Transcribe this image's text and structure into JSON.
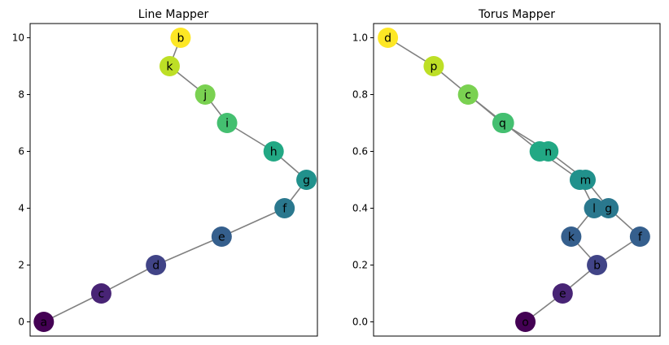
{
  "chart_data": [
    {
      "type": "network",
      "title": "Line Mapper",
      "xlabel": "",
      "ylabel": "",
      "ylim": [
        -0.5,
        10.5
      ],
      "xlim": [
        -0.5,
        10.0
      ],
      "yticks": [
        0,
        2,
        4,
        6,
        8,
        10
      ],
      "ytick_labels": [
        "0",
        "2",
        "4",
        "6",
        "8",
        "10"
      ],
      "grid": false,
      "nodes": [
        {
          "label": "a",
          "x": 0.0,
          "y": 0,
          "color": "#440154"
        },
        {
          "label": "c",
          "x": 2.1,
          "y": 1,
          "color": "#482475"
        },
        {
          "label": "d",
          "x": 4.1,
          "y": 2,
          "color": "#414487"
        },
        {
          "label": "e",
          "x": 6.5,
          "y": 3,
          "color": "#355f8d"
        },
        {
          "label": "f",
          "x": 8.8,
          "y": 4,
          "color": "#2a788e"
        },
        {
          "label": "g",
          "x": 9.6,
          "y": 5,
          "color": "#21918c"
        },
        {
          "label": "h",
          "x": 8.4,
          "y": 6,
          "color": "#22a884"
        },
        {
          "label": "i",
          "x": 6.7,
          "y": 7,
          "color": "#44bf70"
        },
        {
          "label": "j",
          "x": 5.9,
          "y": 8,
          "color": "#7ad151"
        },
        {
          "label": "k",
          "x": 4.6,
          "y": 9,
          "color": "#bddf26"
        },
        {
          "label": "b",
          "x": 5.0,
          "y": 10,
          "color": "#fde725"
        }
      ],
      "edges": [
        [
          "a",
          "c"
        ],
        [
          "c",
          "d"
        ],
        [
          "d",
          "e"
        ],
        [
          "e",
          "f"
        ],
        [
          "f",
          "g"
        ],
        [
          "g",
          "h"
        ],
        [
          "h",
          "i"
        ],
        [
          "i",
          "j"
        ],
        [
          "j",
          "k"
        ],
        [
          "k",
          "b"
        ]
      ]
    },
    {
      "type": "network",
      "title": "Torus Mapper",
      "xlabel": "",
      "ylabel": "",
      "ylim": [
        -0.05,
        1.05
      ],
      "xlim": [
        -0.05,
        0.95
      ],
      "yticks": [
        0.0,
        0.2,
        0.4,
        0.6,
        0.8,
        1.0
      ],
      "ytick_labels": [
        "0.0",
        "0.2",
        "0.4",
        "0.6",
        "0.8",
        "1.0"
      ],
      "grid": false,
      "nodes": [
        {
          "label": "o",
          "x": 0.48,
          "y": 0.0,
          "color": "#440154"
        },
        {
          "label": "e",
          "x": 0.61,
          "y": 0.1,
          "color": "#482475"
        },
        {
          "label": "b",
          "x": 0.73,
          "y": 0.2,
          "color": "#414487"
        },
        {
          "label": "k",
          "x": 0.64,
          "y": 0.3,
          "color": "#355f8d"
        },
        {
          "label": "f",
          "x": 0.88,
          "y": 0.3,
          "color": "#355f8d"
        },
        {
          "label": "l",
          "x": 0.72,
          "y": 0.4,
          "color": "#2a788e"
        },
        {
          "label": "g",
          "x": 0.77,
          "y": 0.4,
          "color": "#2a788e"
        },
        {
          "label": "h",
          "x": 0.67,
          "y": 0.5,
          "color": "#21918c"
        },
        {
          "label": "m",
          "x": 0.69,
          "y": 0.5,
          "color": "#21918c"
        },
        {
          "label": "i",
          "x": 0.53,
          "y": 0.6,
          "color": "#22a884"
        },
        {
          "label": "n",
          "x": 0.56,
          "y": 0.6,
          "color": "#22a884"
        },
        {
          "label": "j",
          "x": 0.405,
          "y": 0.7,
          "color": "#44bf70"
        },
        {
          "label": "q",
          "x": 0.4,
          "y": 0.7,
          "color": "#44bf70"
        },
        {
          "label": "c",
          "x": 0.28,
          "y": 0.8,
          "color": "#7ad151"
        },
        {
          "label": "p",
          "x": 0.16,
          "y": 0.9,
          "color": "#bddf26"
        },
        {
          "label": "d",
          "x": 0.0,
          "y": 1.0,
          "color": "#fde725"
        }
      ],
      "edges": [
        [
          "o",
          "e"
        ],
        [
          "e",
          "b"
        ],
        [
          "b",
          "k"
        ],
        [
          "b",
          "f"
        ],
        [
          "k",
          "l"
        ],
        [
          "f",
          "g"
        ],
        [
          "l",
          "h"
        ],
        [
          "g",
          "m"
        ],
        [
          "h",
          "i"
        ],
        [
          "m",
          "n"
        ],
        [
          "i",
          "j"
        ],
        [
          "n",
          "q"
        ],
        [
          "j",
          "c"
        ],
        [
          "q",
          "c"
        ],
        [
          "c",
          "p"
        ],
        [
          "p",
          "d"
        ]
      ]
    }
  ]
}
